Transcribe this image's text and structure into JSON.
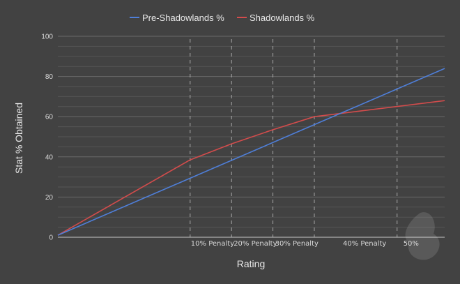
{
  "chart_data": {
    "type": "line",
    "title": "",
    "xlabel": "Rating",
    "ylabel": "Stat % Obtained",
    "ylim": [
      0,
      100
    ],
    "yticks": [
      0,
      20,
      40,
      60,
      80,
      100
    ],
    "xlim": [
      0,
      100
    ],
    "grid": true,
    "legend_position": "top",
    "series": [
      {
        "name": "Pre-Shadowlands %",
        "color": "#4f7fd9",
        "x": [
          0,
          100
        ],
        "y": [
          1,
          84
        ]
      },
      {
        "name": "Shadowlands %",
        "color": "#d34c4c",
        "x": [
          0,
          34.2,
          44.9,
          55.6,
          66.3,
          100
        ],
        "y": [
          1,
          38.5,
          46.5,
          53.5,
          60,
          68
        ]
      }
    ],
    "penalty_markers": [
      {
        "label": "10% Penalty",
        "x": 34.2
      },
      {
        "label": "20% Penalty",
        "x": 44.9
      },
      {
        "label": "30% Penalty",
        "x": 55.6
      },
      {
        "label": "40% Penalty",
        "x": 66.3
      },
      {
        "label": "50%",
        "x": 87.7
      }
    ]
  },
  "colors": {
    "background": "#424242",
    "gridline": "#6a6a6a",
    "axis": "#c8c8c8",
    "marker_line": "#a8a8a8"
  }
}
